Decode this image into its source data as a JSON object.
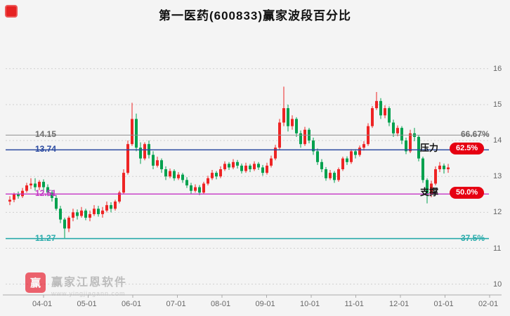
{
  "watermark": {
    "logo_text": "赢",
    "name": "赢家江恩软件",
    "url": "www.yingjiagann.com"
  },
  "chart_data": {
    "type": "candlestick",
    "title": "第一医药(600833)赢家波段百分比",
    "x_tick_labels": [
      "04-01",
      "05-01",
      "06-01",
      "07-01",
      "08-01",
      "09-01",
      "10-01",
      "11-01",
      "12-01",
      "01-01",
      "02-01"
    ],
    "y_tick_labels": [
      16,
      15,
      14,
      13,
      12,
      11,
      10
    ],
    "ylim": [
      9.7,
      16.7
    ],
    "grid": "horizontal-dotted",
    "legend": "none",
    "colors": {
      "up": "#ee2424",
      "down": "#00a14e",
      "grid": "#cfcfcf",
      "axis": "#aaaaaa",
      "tick_text": "#666666",
      "name_text": "#111111"
    },
    "badge_colors": {
      "bg": "#e60012",
      "text": "#ffffff"
    },
    "levels": [
      {
        "price": 14.15,
        "left_label": "14.15",
        "right_label": "66.67%",
        "color": "#8f8f8f",
        "label_color": "#6e6e6e",
        "width": 1
      },
      {
        "price": 13.74,
        "left_label": "13.74",
        "side_name": "压力",
        "badge_label": "62.5%",
        "color": "#2b4aa0",
        "label_color": "#2b4aa0",
        "width": 1.4
      },
      {
        "price": 12.51,
        "left_label": "12.51",
        "side_name": "支撑",
        "badge_label": "50.0%",
        "color": "#c535c5",
        "label_color": "#c535c5",
        "width": 1.4
      },
      {
        "price": 11.27,
        "left_label": "11.27",
        "right_label": "37.5%",
        "color": "#2aabab",
        "label_color": "#2aabab",
        "width": 1.6
      }
    ],
    "ohlc": [
      [
        12.3,
        12.45,
        12.2,
        12.35
      ],
      [
        12.35,
        12.55,
        12.28,
        12.5
      ],
      [
        12.5,
        12.58,
        12.38,
        12.45
      ],
      [
        12.45,
        12.68,
        12.4,
        12.6
      ],
      [
        12.6,
        12.82,
        12.55,
        12.75
      ],
      [
        12.75,
        12.95,
        12.65,
        12.8
      ],
      [
        12.8,
        12.95,
        12.6,
        12.7
      ],
      [
        12.7,
        12.9,
        12.62,
        12.85
      ],
      [
        12.85,
        12.92,
        12.6,
        12.7
      ],
      [
        12.7,
        12.78,
        12.45,
        12.55
      ],
      [
        12.55,
        12.62,
        12.3,
        12.4
      ],
      [
        12.4,
        12.48,
        12.05,
        12.1
      ],
      [
        12.1,
        12.18,
        11.7,
        11.8
      ],
      [
        11.8,
        11.85,
        11.27,
        11.55
      ],
      [
        11.55,
        11.9,
        11.45,
        11.85
      ],
      [
        11.85,
        12.1,
        11.75,
        12.0
      ],
      [
        12.0,
        12.08,
        11.8,
        11.9
      ],
      [
        11.9,
        12.15,
        11.85,
        12.05
      ],
      [
        12.05,
        12.1,
        11.78,
        11.85
      ],
      [
        11.85,
        12.05,
        11.75,
        11.95
      ],
      [
        11.95,
        12.2,
        11.9,
        12.1
      ],
      [
        12.1,
        12.18,
        11.88,
        11.95
      ],
      [
        11.95,
        12.15,
        11.85,
        12.05
      ],
      [
        12.05,
        12.3,
        12.0,
        12.2
      ],
      [
        12.2,
        12.28,
        12.0,
        12.1
      ],
      [
        12.1,
        12.35,
        12.05,
        12.3
      ],
      [
        12.3,
        12.6,
        12.25,
        12.55
      ],
      [
        12.55,
        13.2,
        12.5,
        13.1
      ],
      [
        13.1,
        14.0,
        13.05,
        13.9
      ],
      [
        13.9,
        15.05,
        13.85,
        14.6
      ],
      [
        14.6,
        14.75,
        13.7,
        13.8
      ],
      [
        13.8,
        13.95,
        13.35,
        13.5
      ],
      [
        13.5,
        13.95,
        13.45,
        13.9
      ],
      [
        13.9,
        14.0,
        13.5,
        13.6
      ],
      [
        13.6,
        13.7,
        13.2,
        13.3
      ],
      [
        13.3,
        13.55,
        13.25,
        13.45
      ],
      [
        13.45,
        13.5,
        13.1,
        13.2
      ],
      [
        13.2,
        13.28,
        12.9,
        13.0
      ],
      [
        13.0,
        13.22,
        12.95,
        13.15
      ],
      [
        13.15,
        13.2,
        12.88,
        12.95
      ],
      [
        12.95,
        13.12,
        12.9,
        13.05
      ],
      [
        13.05,
        13.1,
        12.82,
        12.9
      ],
      [
        12.9,
        12.98,
        12.68,
        12.75
      ],
      [
        12.75,
        12.82,
        12.52,
        12.6
      ],
      [
        12.6,
        12.78,
        12.55,
        12.7
      ],
      [
        12.7,
        12.76,
        12.48,
        12.55
      ],
      [
        12.55,
        12.85,
        12.5,
        12.8
      ],
      [
        12.8,
        13.02,
        12.75,
        12.95
      ],
      [
        12.95,
        13.18,
        12.9,
        13.1
      ],
      [
        13.1,
        13.15,
        12.92,
        13.0
      ],
      [
        13.0,
        13.28,
        12.95,
        13.2
      ],
      [
        13.2,
        13.42,
        13.15,
        13.35
      ],
      [
        13.35,
        13.4,
        13.18,
        13.25
      ],
      [
        13.25,
        13.48,
        13.2,
        13.4
      ],
      [
        13.4,
        13.46,
        13.22,
        13.3
      ],
      [
        13.3,
        13.36,
        13.08,
        13.15
      ],
      [
        13.15,
        13.38,
        13.1,
        13.3
      ],
      [
        13.3,
        13.35,
        13.12,
        13.2
      ],
      [
        13.2,
        13.42,
        13.15,
        13.35
      ],
      [
        13.35,
        13.4,
        13.18,
        13.25
      ],
      [
        13.25,
        13.32,
        13.02,
        13.1
      ],
      [
        13.1,
        13.38,
        13.05,
        13.3
      ],
      [
        13.3,
        13.58,
        13.25,
        13.5
      ],
      [
        13.5,
        13.88,
        13.45,
        13.8
      ],
      [
        13.8,
        14.6,
        13.75,
        14.5
      ],
      [
        14.5,
        15.5,
        14.4,
        14.9
      ],
      [
        14.9,
        15.0,
        14.25,
        14.4
      ],
      [
        14.4,
        14.7,
        14.3,
        14.6
      ],
      [
        14.6,
        14.65,
        14.1,
        14.2
      ],
      [
        14.2,
        14.28,
        13.8,
        13.9
      ],
      [
        13.9,
        14.38,
        13.85,
        14.3
      ],
      [
        14.3,
        14.35,
        13.92,
        14.0
      ],
      [
        14.0,
        14.08,
        13.6,
        13.7
      ],
      [
        13.7,
        13.78,
        13.32,
        13.4
      ],
      [
        13.4,
        13.48,
        13.12,
        13.2
      ],
      [
        13.2,
        13.26,
        12.88,
        12.95
      ],
      [
        12.95,
        13.18,
        12.9,
        13.1
      ],
      [
        13.1,
        13.15,
        12.82,
        12.9
      ],
      [
        12.9,
        13.25,
        12.85,
        13.2
      ],
      [
        13.2,
        13.55,
        13.15,
        13.5
      ],
      [
        13.5,
        13.56,
        13.32,
        13.4
      ],
      [
        13.4,
        13.76,
        13.35,
        13.7
      ],
      [
        13.7,
        13.76,
        13.5,
        13.6
      ],
      [
        13.6,
        13.86,
        13.55,
        13.8
      ],
      [
        13.8,
        13.98,
        13.72,
        13.9
      ],
      [
        13.9,
        14.48,
        13.85,
        14.4
      ],
      [
        14.4,
        14.96,
        14.35,
        14.9
      ],
      [
        14.9,
        15.35,
        14.85,
        15.1
      ],
      [
        15.1,
        15.18,
        14.6,
        14.7
      ],
      [
        14.7,
        14.98,
        14.62,
        14.9
      ],
      [
        14.9,
        14.95,
        14.4,
        14.5
      ],
      [
        14.5,
        14.58,
        14.1,
        14.2
      ],
      [
        14.2,
        14.42,
        14.12,
        14.35
      ],
      [
        14.35,
        14.4,
        13.9,
        14.0
      ],
      [
        14.0,
        14.08,
        13.62,
        13.7
      ],
      [
        13.7,
        14.3,
        13.65,
        14.2
      ],
      [
        14.2,
        14.35,
        13.98,
        14.1
      ],
      [
        14.1,
        14.15,
        13.42,
        13.5
      ],
      [
        13.5,
        13.55,
        12.82,
        12.9
      ],
      [
        12.9,
        12.95,
        12.25,
        12.5
      ],
      [
        12.5,
        12.88,
        12.42,
        12.8
      ],
      [
        12.8,
        13.28,
        12.75,
        13.2
      ],
      [
        13.2,
        13.4,
        13.12,
        13.3
      ],
      [
        13.3,
        13.36,
        13.08,
        13.2
      ],
      [
        13.2,
        13.35,
        13.1,
        13.25
      ]
    ]
  }
}
